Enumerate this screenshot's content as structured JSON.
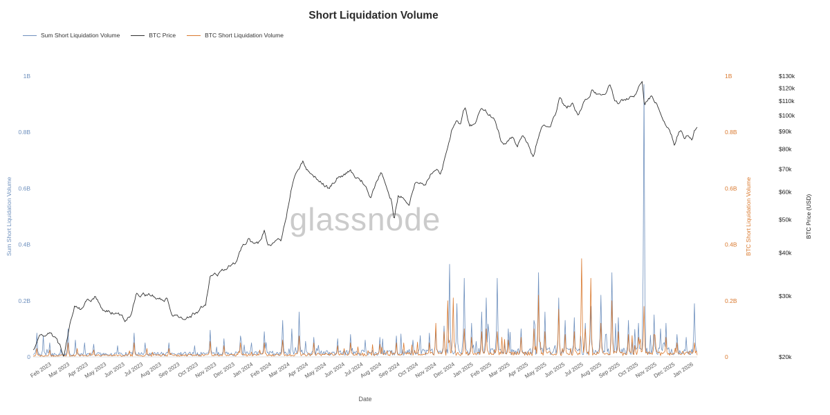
{
  "watermark": "glassnode",
  "legend": [
    {
      "label": "Sum Short Liquidation Volume",
      "color": "#6d8fbd"
    },
    {
      "label": "BTC Price",
      "color": "#2f2f2f"
    },
    {
      "label": "BTC Short Liquidation Volume",
      "color": "#d9782d"
    }
  ],
  "chart_data": {
    "type": "line",
    "title": "Short Liquidation Volume",
    "xlabel": "Date",
    "background": "#ffffff",
    "grid": false,
    "legend_position": "top-left",
    "x_domain_months": [
      0,
      36.2
    ],
    "x_tick_first_month": 1,
    "x_tick_labels": [
      "Feb 2023",
      "Mar 2023",
      "Apr 2023",
      "May 2023",
      "Jun 2023",
      "Jul 2023",
      "Aug 2023",
      "Sep 2023",
      "Oct 2023",
      "Nov 2023",
      "Dec 2023",
      "Jan 2024",
      "Feb 2024",
      "Mar 2024",
      "Apr 2024",
      "May 2024",
      "Jun 2024",
      "Jul 2024",
      "Aug 2024",
      "Sep 2024",
      "Oct 2024",
      "Nov 2024",
      "Dec 2024",
      "Jan 2025",
      "Feb 2025",
      "Mar 2025",
      "Apr 2025",
      "May 2025",
      "Jun 2025",
      "Jul 2025",
      "Aug 2025",
      "Sep 2025",
      "Oct 2025",
      "Nov 2025",
      "Dec 2025",
      "Jan 2026"
    ],
    "axes": {
      "left": {
        "label": "Sum Short Liquidation Volume",
        "color": "#6d8fbd",
        "tick_labels": [
          "0",
          "0.2B",
          "0.4B",
          "0.6B",
          "0.8B",
          "1B"
        ],
        "tick_values": [
          0,
          0.2,
          0.4,
          0.6,
          0.8,
          1
        ],
        "range_b": [
          0,
          1
        ]
      },
      "right_volume": {
        "label": "BTC Short Liquidation Volume",
        "color": "#d9782d",
        "tick_labels": [
          "0",
          "0.2B",
          "0.4B",
          "0.6B",
          "0.8B",
          "1B"
        ],
        "tick_values": [
          0,
          0.2,
          0.4,
          0.6,
          0.8,
          1
        ],
        "range_b": [
          0,
          1
        ]
      },
      "right_price": {
        "label": "BTC Price (USD)",
        "color": "#1a1a1a",
        "scale": "log",
        "tick_labels": [
          "$20k",
          "$30k",
          "$40k",
          "$50k",
          "$60k",
          "$70k",
          "$80k",
          "$90k",
          "$100k",
          "$110k",
          "$120k",
          "$130k"
        ],
        "tick_values": [
          20000,
          30000,
          40000,
          50000,
          60000,
          70000,
          80000,
          90000,
          100000,
          110000,
          120000,
          130000
        ],
        "range": [
          20000,
          130000
        ]
      }
    },
    "series": [
      {
        "name": "Sum Short Liquidation Volume",
        "color": "#6d8fbd",
        "axis": "volume",
        "unit": "B USD",
        "baseline_b": [
          [
            0,
            0.012
          ],
          [
            11,
            0.016
          ],
          [
            22,
            0.024
          ],
          [
            36.2,
            0.028
          ]
        ],
        "spikes": [
          [
            0.2,
            0.085
          ],
          [
            0.55,
            0.075
          ],
          [
            0.9,
            0.05
          ],
          [
            1.9,
            0.1
          ],
          [
            2.3,
            0.06
          ],
          [
            2.8,
            0.05
          ],
          [
            3.3,
            0.045
          ],
          [
            4.6,
            0.04
          ],
          [
            5.5,
            0.085
          ],
          [
            6.1,
            0.05
          ],
          [
            7.4,
            0.05
          ],
          [
            8.8,
            0.04
          ],
          [
            9.65,
            0.095
          ],
          [
            10.4,
            0.065
          ],
          [
            11.3,
            0.075
          ],
          [
            11.9,
            0.05
          ],
          [
            12.6,
            0.09
          ],
          [
            13.6,
            0.13
          ],
          [
            14.1,
            0.1
          ],
          [
            14.5,
            0.16
          ],
          [
            15.3,
            0.07
          ],
          [
            16.6,
            0.065
          ],
          [
            17.3,
            0.08
          ],
          [
            18.1,
            0.06
          ],
          [
            18.9,
            0.07
          ],
          [
            19.8,
            0.075
          ],
          [
            20.7,
            0.06
          ],
          [
            21.6,
            0.085
          ],
          [
            21.95,
            0.1
          ],
          [
            22.4,
            0.11
          ],
          [
            22.7,
            0.33
          ],
          [
            23.1,
            0.19
          ],
          [
            23.5,
            0.28
          ],
          [
            23.9,
            0.12
          ],
          [
            24.45,
            0.16
          ],
          [
            24.7,
            0.21
          ],
          [
            25.3,
            0.28
          ],
          [
            25.9,
            0.1
          ],
          [
            26.6,
            0.1
          ],
          [
            27.3,
            0.13
          ],
          [
            27.55,
            0.3
          ],
          [
            27.9,
            0.16
          ],
          [
            28.65,
            0.21
          ],
          [
            29.0,
            0.13
          ],
          [
            29.5,
            0.14
          ],
          [
            30.1,
            0.12
          ],
          [
            30.4,
            0.18
          ],
          [
            30.95,
            0.22
          ],
          [
            31.55,
            0.3
          ],
          [
            31.9,
            0.14
          ],
          [
            32.45,
            0.13
          ],
          [
            33.0,
            0.12
          ],
          [
            33.3,
            0.97
          ],
          [
            33.85,
            0.15
          ],
          [
            34.2,
            0.1
          ],
          [
            34.5,
            0.12
          ],
          [
            35.1,
            0.08
          ],
          [
            35.6,
            0.07
          ],
          [
            36.05,
            0.19
          ]
        ]
      },
      {
        "name": "BTC Price",
        "color": "#2f2f2f",
        "axis": "price",
        "unit": "USD",
        "anchors": [
          [
            0,
            20900
          ],
          [
            0.4,
            23300
          ],
          [
            0.9,
            23600
          ],
          [
            1.3,
            22200
          ],
          [
            1.66,
            20300
          ],
          [
            2.0,
            25100
          ],
          [
            2.25,
            28300
          ],
          [
            2.6,
            27600
          ],
          [
            3.0,
            29200
          ],
          [
            3.4,
            30100
          ],
          [
            3.72,
            27600
          ],
          [
            4.1,
            27100
          ],
          [
            4.55,
            26900
          ],
          [
            5.0,
            25700
          ],
          [
            5.35,
            26900
          ],
          [
            5.6,
            30600
          ],
          [
            6.2,
            30300
          ],
          [
            6.6,
            29900
          ],
          [
            7.05,
            29200
          ],
          [
            7.3,
            29300
          ],
          [
            7.55,
            26100
          ],
          [
            8.0,
            26000
          ],
          [
            8.5,
            26200
          ],
          [
            9.0,
            27000
          ],
          [
            9.4,
            28300
          ],
          [
            9.65,
            34000
          ],
          [
            10.0,
            34600
          ],
          [
            10.4,
            35500
          ],
          [
            10.8,
            37400
          ],
          [
            11.1,
            38000
          ],
          [
            11.4,
            41900
          ],
          [
            11.7,
            43900
          ],
          [
            12.0,
            42300
          ],
          [
            12.35,
            42800
          ],
          [
            12.6,
            46400
          ],
          [
            12.8,
            41700
          ],
          [
            13.2,
            42900
          ],
          [
            13.5,
            43300
          ],
          [
            13.8,
            52000
          ],
          [
            14.1,
            62400
          ],
          [
            14.4,
            68500
          ],
          [
            14.7,
            73100
          ],
          [
            15.0,
            69800
          ],
          [
            15.3,
            67500
          ],
          [
            15.6,
            65800
          ],
          [
            15.9,
            63500
          ],
          [
            16.15,
            60800
          ],
          [
            16.4,
            64100
          ],
          [
            16.7,
            67600
          ],
          [
            17.0,
            68400
          ],
          [
            17.3,
            69900
          ],
          [
            17.6,
            66100
          ],
          [
            17.9,
            64800
          ],
          [
            18.2,
            61500
          ],
          [
            18.42,
            57300
          ],
          [
            18.7,
            64000
          ],
          [
            18.95,
            67800
          ],
          [
            19.2,
            64500
          ],
          [
            19.5,
            58300
          ],
          [
            19.67,
            50500
          ],
          [
            19.9,
            59500
          ],
          [
            20.2,
            58200
          ],
          [
            20.5,
            54500
          ],
          [
            20.8,
            63200
          ],
          [
            21.1,
            63600
          ],
          [
            21.4,
            62400
          ],
          [
            21.7,
            67500
          ],
          [
            22.0,
            69500
          ],
          [
            22.2,
            68300
          ],
          [
            22.5,
            76500
          ],
          [
            22.8,
            91000
          ],
          [
            23.05,
            98500
          ],
          [
            23.3,
            95800
          ],
          [
            23.55,
            106000
          ],
          [
            23.8,
            94200
          ],
          [
            24.1,
            94500
          ],
          [
            24.4,
            102300
          ],
          [
            24.65,
            104500
          ],
          [
            24.9,
            102000
          ],
          [
            25.2,
            96500
          ],
          [
            25.5,
            85000
          ],
          [
            25.8,
            84200
          ],
          [
            26.1,
            86000
          ],
          [
            26.4,
            82500
          ],
          [
            26.7,
            87400
          ],
          [
            27.0,
            82300
          ],
          [
            27.26,
            76500
          ],
          [
            27.75,
            94000
          ],
          [
            28.0,
            94200
          ],
          [
            28.3,
            97000
          ],
          [
            28.55,
            103000
          ],
          [
            28.7,
            111000
          ],
          [
            28.9,
            106500
          ],
          [
            29.1,
            105000
          ],
          [
            29.4,
            108000
          ],
          [
            29.7,
            99500
          ],
          [
            30.0,
            107000
          ],
          [
            30.45,
            118000
          ],
          [
            30.7,
            116500
          ],
          [
            31.0,
            115800
          ],
          [
            31.2,
            114200
          ],
          [
            31.45,
            121000
          ],
          [
            31.7,
            112000
          ],
          [
            31.95,
            108500
          ],
          [
            32.2,
            110500
          ],
          [
            32.5,
            112800
          ],
          [
            32.9,
            117000
          ],
          [
            33.2,
            125500
          ],
          [
            33.32,
            106000
          ],
          [
            33.5,
            110500
          ],
          [
            33.7,
            113000
          ],
          [
            33.9,
            110000
          ],
          [
            34.2,
            103000
          ],
          [
            34.5,
            96000
          ],
          [
            34.8,
            86500
          ],
          [
            34.95,
            82500
          ],
          [
            35.1,
            87000
          ],
          [
            35.3,
            91500
          ],
          [
            35.5,
            87500
          ],
          [
            35.7,
            89500
          ],
          [
            35.9,
            86800
          ],
          [
            36.05,
            90500
          ],
          [
            36.18,
            92500
          ]
        ]
      },
      {
        "name": "BTC Short Liquidation Volume",
        "color": "#d9782d",
        "axis": "volume",
        "unit": "B USD",
        "baseline_b": [
          [
            0,
            0.006
          ],
          [
            11,
            0.009
          ],
          [
            22,
            0.015
          ],
          [
            36.2,
            0.018
          ]
        ],
        "spikes": [
          [
            0.2,
            0.03
          ],
          [
            0.9,
            0.025
          ],
          [
            1.9,
            0.05
          ],
          [
            2.4,
            0.03
          ],
          [
            3.3,
            0.025
          ],
          [
            5.5,
            0.05
          ],
          [
            6.2,
            0.03
          ],
          [
            7.4,
            0.03
          ],
          [
            9.65,
            0.055
          ],
          [
            10.4,
            0.04
          ],
          [
            11.3,
            0.05
          ],
          [
            12.6,
            0.05
          ],
          [
            13.6,
            0.06
          ],
          [
            14.5,
            0.075
          ],
          [
            15.3,
            0.05
          ],
          [
            16.6,
            0.04
          ],
          [
            17.3,
            0.05
          ],
          [
            18.9,
            0.045
          ],
          [
            19.8,
            0.05
          ],
          [
            21.6,
            0.05
          ],
          [
            21.95,
            0.12
          ],
          [
            22.4,
            0.09
          ],
          [
            22.6,
            0.2
          ],
          [
            22.9,
            0.21
          ],
          [
            23.5,
            0.1
          ],
          [
            23.9,
            0.07
          ],
          [
            24.45,
            0.09
          ],
          [
            24.7,
            0.1
          ],
          [
            25.3,
            0.09
          ],
          [
            25.9,
            0.06
          ],
          [
            26.6,
            0.07
          ],
          [
            27.3,
            0.1
          ],
          [
            27.55,
            0.22
          ],
          [
            27.9,
            0.09
          ],
          [
            28.65,
            0.17
          ],
          [
            29.0,
            0.08
          ],
          [
            29.5,
            0.09
          ],
          [
            29.9,
            0.35
          ],
          [
            30.1,
            0.1
          ],
          [
            30.4,
            0.28
          ],
          [
            30.95,
            0.12
          ],
          [
            31.55,
            0.2
          ],
          [
            31.9,
            0.09
          ],
          [
            32.45,
            0.08
          ],
          [
            33.0,
            0.07
          ],
          [
            33.3,
            0.18
          ],
          [
            33.85,
            0.08
          ],
          [
            34.5,
            0.07
          ],
          [
            35.1,
            0.05
          ],
          [
            36.05,
            0.05
          ]
        ]
      }
    ]
  }
}
